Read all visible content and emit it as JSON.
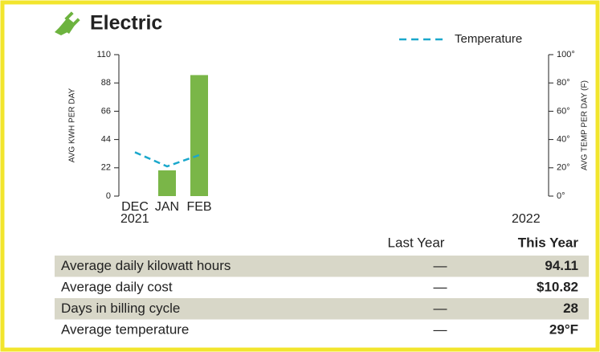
{
  "title": "Electric",
  "chart_data": {
    "type": "bar",
    "categories": [
      "DEC",
      "JAN",
      "FEB"
    ],
    "years": [
      "2021",
      "2022"
    ],
    "ylabel": "AVG KWH PER DAY",
    "y2label": "AVG TEMP PER DAY (F)",
    "ylim": [
      0,
      110
    ],
    "yticks": [
      0,
      22,
      44,
      66,
      88,
      110
    ],
    "y2lim": [
      0,
      100
    ],
    "y2ticks": [
      {
        "value": 0,
        "label": "0°"
      },
      {
        "value": 20,
        "label": "20°"
      },
      {
        "value": 40,
        "label": "40°"
      },
      {
        "value": 60,
        "label": "60°"
      },
      {
        "value": 80,
        "label": "80°"
      },
      {
        "value": 100,
        "label": "100°"
      }
    ],
    "series": [
      {
        "type": "bar",
        "color": "#7ab648",
        "values": [
          null,
          20,
          94.11
        ]
      },
      {
        "type": "line",
        "name": "Temperature",
        "color": "#1ba8cc",
        "axis": "y2",
        "values": [
          31,
          21,
          29
        ]
      }
    ],
    "legend": "top-right"
  },
  "table": {
    "header": [
      "Last Year",
      "This Year"
    ],
    "rows": [
      [
        "Average daily kilowatt hours",
        "—",
        "94.11"
      ],
      [
        "Average daily cost",
        "—",
        "$10.82"
      ],
      [
        "Days in billing cycle",
        "—",
        "28"
      ],
      [
        "Average temperature",
        "—",
        "29°F"
      ]
    ]
  }
}
